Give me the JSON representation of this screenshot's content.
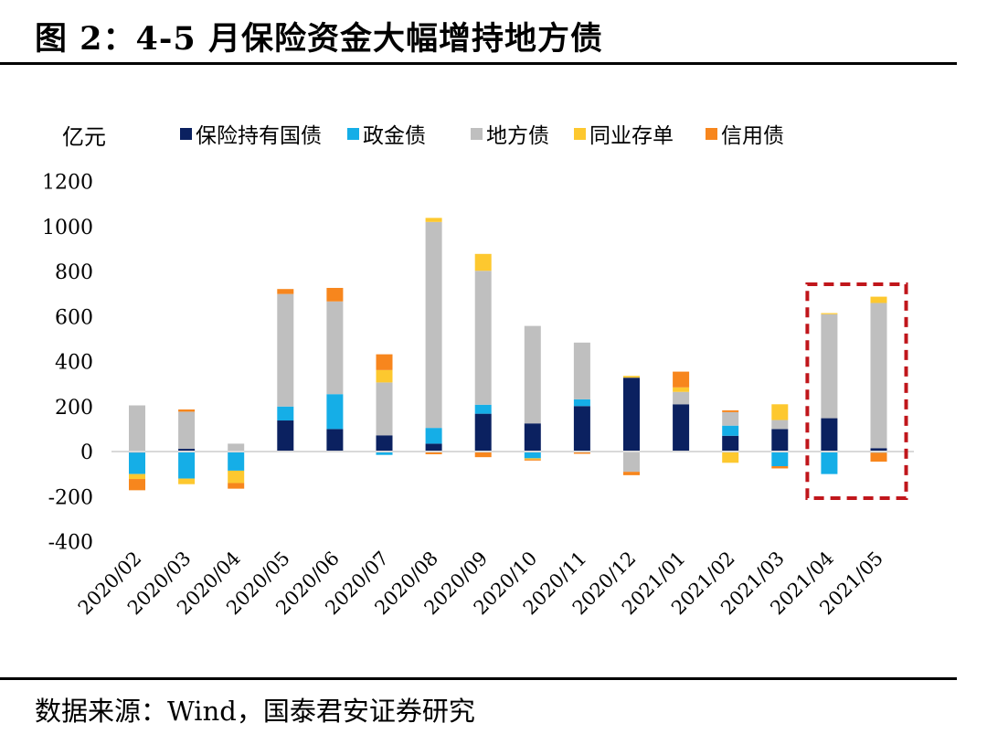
{
  "figure": {
    "title": "图 2：4-5 月保险资金大幅增持地方债",
    "source": "数据来源：Wind，国泰君安证券研究"
  },
  "chart_data": {
    "type": "bar",
    "stacked": true,
    "ylabel": "亿元",
    "ylim": [
      -400,
      1200
    ],
    "yticks": [
      -400,
      -200,
      0,
      200,
      400,
      600,
      800,
      1000,
      1200
    ],
    "grid": false,
    "legend_position": "top",
    "categories": [
      "2020/02",
      "2020/03",
      "2020/04",
      "2020/05",
      "2020/06",
      "2020/07",
      "2020/08",
      "2020/09",
      "2020/10",
      "2020/11",
      "2020/12",
      "2021/01",
      "2021/02",
      "2021/03",
      "2021/04",
      "2021/05"
    ],
    "series": [
      {
        "name": "保险持有国债",
        "color": "#0b2160",
        "values": [
          -5,
          12,
          0,
          138,
          100,
          72,
          35,
          168,
          125,
          202,
          328,
          210,
          70,
          100,
          148,
          15
        ]
      },
      {
        "name": "政金债",
        "color": "#15aee7",
        "values": [
          -95,
          -120,
          -85,
          62,
          155,
          -15,
          70,
          40,
          -30,
          30,
          0,
          0,
          45,
          -65,
          -100,
          -5
        ]
      },
      {
        "name": "地方债",
        "color": "#bfbfbf",
        "values": [
          205,
          165,
          35,
          500,
          412,
          235,
          915,
          595,
          433,
          252,
          -90,
          55,
          60,
          40,
          462,
          645
        ]
      },
      {
        "name": "同业存单",
        "color": "#fdc82f",
        "values": [
          -22,
          -25,
          -55,
          -3,
          0,
          55,
          18,
          75,
          -5,
          0,
          8,
          20,
          -50,
          70,
          5,
          28
        ]
      },
      {
        "name": "信用债",
        "color": "#f7861d",
        "values": [
          -50,
          10,
          -25,
          22,
          60,
          70,
          -12,
          -25,
          -5,
          -10,
          -15,
          70,
          8,
          -10,
          0,
          -40
        ]
      }
    ],
    "highlight": {
      "categories": [
        "2021/04",
        "2021/05"
      ],
      "style": "dashed-box",
      "color": "#c0161b"
    }
  }
}
